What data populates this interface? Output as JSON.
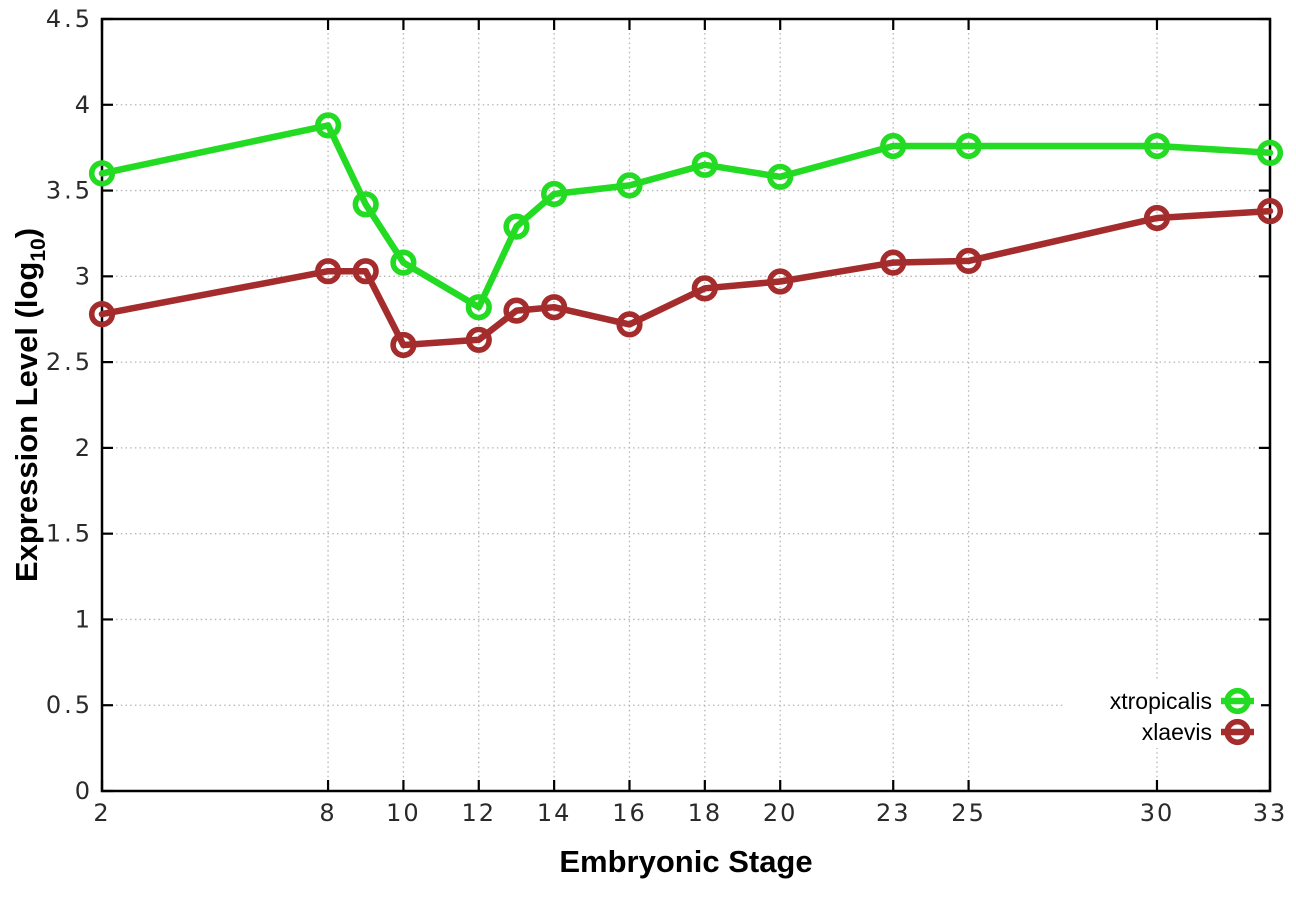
{
  "chart_data": {
    "type": "line",
    "title": "",
    "xlabel": "Embryonic Stage",
    "ylabel": {
      "main": "Expression Level (log",
      "sub": "10",
      "close": ")"
    },
    "xlim": [
      2,
      33
    ],
    "ylim": [
      0,
      4.5
    ],
    "grid": true,
    "legend_position": "bottom-right",
    "x_ticks": [
      2,
      8,
      10,
      12,
      14,
      16,
      18,
      20,
      23,
      25,
      30,
      33
    ],
    "x_tick_labels": [
      "2",
      "8",
      "10",
      "12",
      "14",
      "16",
      "18",
      "20",
      "23",
      "25",
      "30",
      "33"
    ],
    "y_ticks": [
      0,
      0.5,
      1,
      1.5,
      2,
      2.5,
      3,
      3.5,
      4,
      4.5
    ],
    "y_tick_labels": [
      "0",
      "0.5",
      "1",
      "1.5",
      "2",
      "2.5",
      "3",
      "3.5",
      "4",
      "4.5"
    ],
    "x": [
      2,
      8,
      9,
      10,
      12,
      13,
      14,
      16,
      18,
      20,
      23,
      25,
      30,
      33
    ],
    "series": [
      {
        "name": "xtropicalis",
        "color": "#22DB22",
        "values": [
          3.6,
          3.88,
          3.42,
          3.08,
          2.82,
          3.29,
          3.48,
          3.53,
          3.65,
          3.58,
          3.76,
          3.76,
          3.76,
          3.72
        ]
      },
      {
        "name": "xlaevis",
        "color": "#A42C2C",
        "values": [
          2.78,
          3.03,
          3.03,
          2.6,
          2.63,
          2.8,
          2.82,
          2.72,
          2.93,
          2.97,
          3.08,
          3.09,
          3.34,
          3.38
        ]
      }
    ],
    "colors": {
      "grid": "#b5b5b5",
      "axis": "#000000",
      "tick_text": "#2a2a2a",
      "title_text": "#000000",
      "background": "#ffffff"
    }
  }
}
